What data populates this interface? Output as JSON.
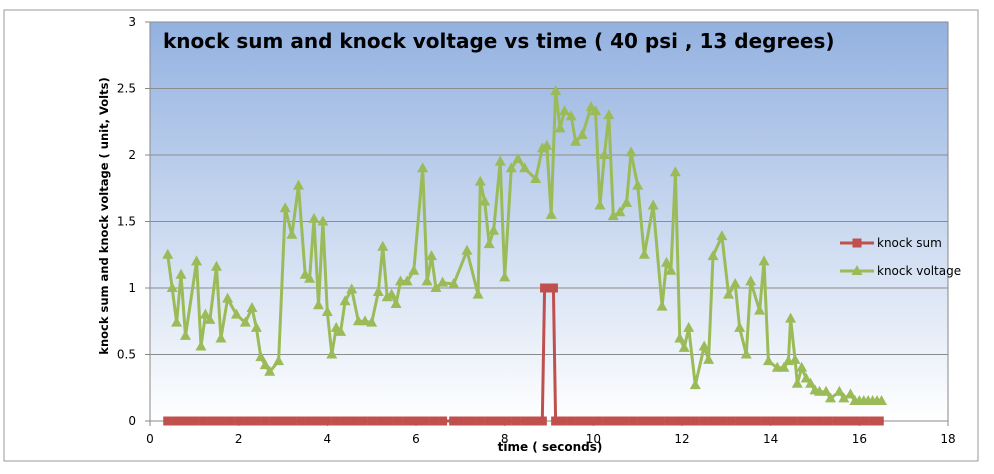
{
  "chart_data": {
    "type": "line",
    "title": "knock sum and knock voltage vs time ( 40 psi , 13 degrees)",
    "xlabel": "time ( seconds)",
    "ylabel": "knock sum and knock voltage ( unit, Volts)",
    "xlim": [
      0,
      18
    ],
    "ylim": [
      0,
      3
    ],
    "x_ticks": [
      "0",
      "2",
      "4",
      "6",
      "8",
      "10",
      "12",
      "14",
      "16",
      "18"
    ],
    "y_ticks": [
      "0",
      "0.5",
      "1",
      "1.5",
      "2",
      "2.5",
      "3"
    ],
    "grid": "horizontal",
    "legend_position": "right",
    "colors": {
      "knock_sum": "#c0504d",
      "knock_voltage": "#9bbb59",
      "plot_bg_top": "#93b1e0",
      "plot_bg_bottom": "#ffffff"
    },
    "series": [
      {
        "name": "knock sum",
        "marker": "square",
        "points": [
          [
            0.4,
            0
          ],
          [
            0.6,
            0
          ],
          [
            0.8,
            0
          ],
          [
            1.0,
            0
          ],
          [
            1.2,
            0
          ],
          [
            1.4,
            0
          ],
          [
            1.6,
            0
          ],
          [
            1.8,
            0
          ],
          [
            2.0,
            0
          ],
          [
            2.2,
            0
          ],
          [
            2.4,
            0
          ],
          [
            2.6,
            0
          ],
          [
            2.8,
            0
          ],
          [
            3.0,
            0
          ],
          [
            3.2,
            0
          ],
          [
            3.4,
            0
          ],
          [
            3.6,
            0
          ],
          [
            3.8,
            0
          ],
          [
            4.0,
            0
          ],
          [
            4.2,
            0
          ],
          [
            4.4,
            0
          ],
          [
            4.6,
            0
          ],
          [
            4.8,
            0
          ],
          [
            5.0,
            0
          ],
          [
            5.2,
            0
          ],
          [
            5.4,
            0
          ],
          [
            5.6,
            0
          ],
          [
            5.8,
            0
          ],
          [
            6.0,
            0
          ],
          [
            6.2,
            0
          ],
          [
            6.4,
            0
          ],
          [
            6.6,
            0
          ],
          [
            6.85,
            0
          ],
          [
            7.05,
            0
          ],
          [
            7.25,
            0
          ],
          [
            7.45,
            0
          ],
          [
            7.65,
            0
          ],
          [
            7.85,
            0
          ],
          [
            8.05,
            0
          ],
          [
            8.25,
            0
          ],
          [
            8.45,
            0
          ],
          [
            8.65,
            0
          ],
          [
            8.85,
            0
          ],
          [
            8.9,
            1
          ],
          [
            9.0,
            1
          ],
          [
            9.1,
            1
          ],
          [
            9.15,
            0
          ],
          [
            9.3,
            0
          ],
          [
            9.5,
            0
          ],
          [
            9.7,
            0
          ],
          [
            9.9,
            0
          ],
          [
            10.1,
            0
          ],
          [
            10.3,
            0
          ],
          [
            10.5,
            0
          ],
          [
            10.7,
            0
          ],
          [
            10.9,
            0
          ],
          [
            11.1,
            0
          ],
          [
            11.3,
            0
          ],
          [
            11.5,
            0
          ],
          [
            11.7,
            0
          ],
          [
            11.9,
            0
          ],
          [
            12.1,
            0
          ],
          [
            12.3,
            0
          ],
          [
            12.5,
            0
          ],
          [
            12.7,
            0
          ],
          [
            12.9,
            0
          ],
          [
            13.1,
            0
          ],
          [
            13.3,
            0
          ],
          [
            13.5,
            0
          ],
          [
            13.7,
            0
          ],
          [
            13.9,
            0
          ],
          [
            14.1,
            0
          ],
          [
            14.3,
            0
          ],
          [
            14.5,
            0
          ],
          [
            14.7,
            0
          ],
          [
            14.9,
            0
          ],
          [
            15.1,
            0
          ],
          [
            15.3,
            0
          ],
          [
            15.5,
            0
          ],
          [
            15.7,
            0
          ],
          [
            15.9,
            0
          ],
          [
            16.1,
            0
          ],
          [
            16.3,
            0
          ],
          [
            16.45,
            0
          ]
        ]
      },
      {
        "name": "knock voltage",
        "marker": "triangle",
        "points": [
          [
            0.4,
            1.25
          ],
          [
            0.5,
            1.0
          ],
          [
            0.6,
            0.74
          ],
          [
            0.7,
            1.1
          ],
          [
            0.8,
            0.64
          ],
          [
            1.05,
            1.2
          ],
          [
            1.15,
            0.56
          ],
          [
            1.25,
            0.8
          ],
          [
            1.35,
            0.76
          ],
          [
            1.5,
            1.16
          ],
          [
            1.6,
            0.62
          ],
          [
            1.75,
            0.92
          ],
          [
            1.95,
            0.8
          ],
          [
            2.15,
            0.74
          ],
          [
            2.3,
            0.85
          ],
          [
            2.4,
            0.7
          ],
          [
            2.5,
            0.48
          ],
          [
            2.6,
            0.42
          ],
          [
            2.7,
            0.37
          ],
          [
            2.9,
            0.45
          ],
          [
            3.05,
            1.6
          ],
          [
            3.2,
            1.4
          ],
          [
            3.35,
            1.77
          ],
          [
            3.5,
            1.1
          ],
          [
            3.6,
            1.07
          ],
          [
            3.7,
            1.52
          ],
          [
            3.8,
            0.87
          ],
          [
            3.9,
            1.5
          ],
          [
            4.0,
            0.82
          ],
          [
            4.1,
            0.5
          ],
          [
            4.2,
            0.7
          ],
          [
            4.3,
            0.67
          ],
          [
            4.4,
            0.9
          ],
          [
            4.55,
            0.99
          ],
          [
            4.7,
            0.75
          ],
          [
            4.85,
            0.75
          ],
          [
            5.0,
            0.74
          ],
          [
            5.15,
            0.97
          ],
          [
            5.25,
            1.31
          ],
          [
            5.35,
            0.93
          ],
          [
            5.45,
            0.95
          ],
          [
            5.55,
            0.88
          ],
          [
            5.65,
            1.05
          ],
          [
            5.8,
            1.05
          ],
          [
            5.95,
            1.13
          ],
          [
            6.15,
            1.9
          ],
          [
            6.25,
            1.05
          ],
          [
            6.35,
            1.24
          ],
          [
            6.45,
            1.0
          ],
          [
            6.6,
            1.04
          ],
          [
            6.85,
            1.03
          ],
          [
            7.15,
            1.28
          ],
          [
            7.4,
            0.95
          ],
          [
            7.45,
            1.8
          ],
          [
            7.55,
            1.65
          ],
          [
            7.65,
            1.33
          ],
          [
            7.75,
            1.43
          ],
          [
            7.9,
            1.95
          ],
          [
            8.0,
            1.08
          ],
          [
            8.15,
            1.9
          ],
          [
            8.3,
            1.97
          ],
          [
            8.45,
            1.9
          ],
          [
            8.7,
            1.82
          ],
          [
            8.85,
            2.05
          ],
          [
            8.95,
            2.07
          ],
          [
            9.05,
            1.55
          ],
          [
            9.15,
            2.48
          ],
          [
            9.25,
            2.2
          ],
          [
            9.35,
            2.33
          ],
          [
            9.5,
            2.29
          ],
          [
            9.6,
            2.1
          ],
          [
            9.75,
            2.15
          ],
          [
            9.95,
            2.36
          ],
          [
            10.05,
            2.33
          ],
          [
            10.15,
            1.62
          ],
          [
            10.25,
            2.0
          ],
          [
            10.35,
            2.3
          ],
          [
            10.45,
            1.54
          ],
          [
            10.6,
            1.57
          ],
          [
            10.75,
            1.64
          ],
          [
            10.85,
            2.02
          ],
          [
            11.0,
            1.77
          ],
          [
            11.15,
            1.25
          ],
          [
            11.35,
            1.62
          ],
          [
            11.55,
            0.86
          ],
          [
            11.65,
            1.19
          ],
          [
            11.75,
            1.13
          ],
          [
            11.85,
            1.87
          ],
          [
            11.95,
            0.62
          ],
          [
            12.05,
            0.55
          ],
          [
            12.15,
            0.7
          ],
          [
            12.3,
            0.27
          ],
          [
            12.5,
            0.56
          ],
          [
            12.6,
            0.46
          ],
          [
            12.7,
            1.24
          ],
          [
            12.9,
            1.39
          ],
          [
            13.05,
            0.95
          ],
          [
            13.2,
            1.03
          ],
          [
            13.3,
            0.7
          ],
          [
            13.45,
            0.5
          ],
          [
            13.55,
            1.05
          ],
          [
            13.75,
            0.83
          ],
          [
            13.85,
            1.2
          ],
          [
            13.95,
            0.45
          ],
          [
            14.15,
            0.4
          ],
          [
            14.3,
            0.4
          ],
          [
            14.4,
            0.45
          ],
          [
            14.45,
            0.77
          ],
          [
            14.55,
            0.46
          ],
          [
            14.6,
            0.28
          ],
          [
            14.7,
            0.4
          ],
          [
            14.8,
            0.32
          ],
          [
            14.9,
            0.28
          ],
          [
            15.0,
            0.23
          ],
          [
            15.1,
            0.22
          ],
          [
            15.25,
            0.22
          ],
          [
            15.35,
            0.17
          ],
          [
            15.55,
            0.22
          ],
          [
            15.65,
            0.17
          ],
          [
            15.8,
            0.2
          ],
          [
            15.9,
            0.15
          ],
          [
            16.0,
            0.15
          ],
          [
            16.1,
            0.15
          ],
          [
            16.2,
            0.15
          ],
          [
            16.3,
            0.15
          ],
          [
            16.4,
            0.15
          ],
          [
            16.5,
            0.15
          ]
        ]
      }
    ]
  }
}
